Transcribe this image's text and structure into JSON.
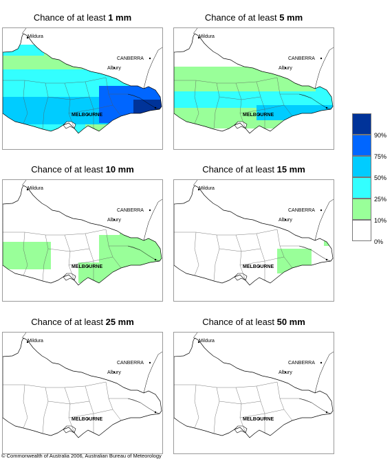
{
  "panels": [
    {
      "title_prefix": "Chance of at least ",
      "threshold": "1 mm",
      "level": 4
    },
    {
      "title_prefix": "Chance of at least ",
      "threshold": "5 mm",
      "level": 3
    },
    {
      "title_prefix": "Chance of at least ",
      "threshold": "10 mm",
      "level": 2
    },
    {
      "title_prefix": "Chance of at least ",
      "threshold": "15 mm",
      "level": 1
    },
    {
      "title_prefix": "Chance of at least ",
      "threshold": "25 mm",
      "level": 0
    },
    {
      "title_prefix": "Chance of at least ",
      "threshold": "50 mm",
      "level": 0
    }
  ],
  "places": {
    "mildura": "Mildura",
    "canberra": "CANBERRA",
    "albury": "Albury",
    "melbourne": "MELBOURNE"
  },
  "legend": {
    "labels": [
      "90%",
      "75%",
      "50%",
      "25%",
      "10%",
      "0%"
    ],
    "colors": [
      "#003399",
      "#0066ff",
      "#00ccff",
      "#33ffff",
      "#99ff99",
      "#ffffff"
    ]
  },
  "colors": {
    "green": "#99ff99",
    "cyan": "#33ffff",
    "teal": "#00ccff",
    "blue": "#0066ff",
    "navy": "#003399"
  },
  "footer": "© Commonwealth of Australia 2006, Australian Bureau of Meteorology"
}
